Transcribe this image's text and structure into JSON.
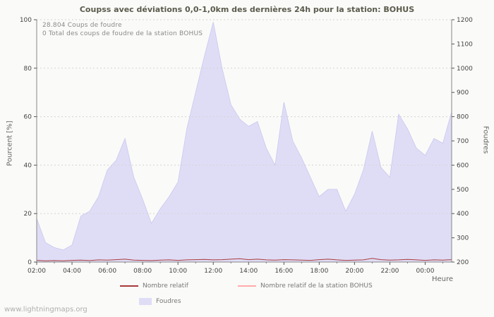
{
  "chart_data": {
    "type": "area",
    "title": "Coupss avec déviations 0,0-1,0km des dernières 24h pour la station: BOHUS",
    "xlabel": "Heure",
    "ylabel_left": "Pourcent  [%]",
    "ylabel_right": "Foudres",
    "annotations": [
      "28.804  Coups de foudre",
      "0 Total des coups de foudre de la station BOHUS"
    ],
    "watermark": "www.lightningmaps.org",
    "x_start": "02:00",
    "x_interval_minutes": 30,
    "x_tick_labels": [
      "02:00",
      "04:00",
      "06:00",
      "08:00",
      "10:00",
      "12:00",
      "14:00",
      "16:00",
      "18:00",
      "20:00",
      "22:00",
      "00:00"
    ],
    "y_left_ticks": [
      0,
      20,
      40,
      60,
      80,
      100
    ],
    "y_right_ticks": [
      200,
      300,
      400,
      500,
      600,
      700,
      800,
      900,
      1000,
      1100,
      1200
    ],
    "ylim_left": [
      0,
      100
    ],
    "ylim_right": [
      200,
      1200
    ],
    "grid": true,
    "legend_position": "bottom",
    "series": [
      {
        "name": "Foudres",
        "type": "area",
        "axis": "right",
        "color": "#dfddf6",
        "edge_color": "#c9c7ef",
        "values": [
          380,
          280,
          260,
          250,
          270,
          390,
          410,
          470,
          580,
          620,
          710,
          550,
          460,
          360,
          420,
          470,
          530,
          750,
          900,
          1050,
          1190,
          1000,
          850,
          790,
          760,
          780,
          670,
          600,
          860,
          700,
          630,
          550,
          470,
          500,
          500,
          410,
          480,
          580,
          740,
          590,
          550,
          810,
          750,
          670,
          640,
          710,
          690,
          820
        ]
      },
      {
        "name": "Nombre relatif",
        "type": "line",
        "axis": "left",
        "color": "#a83a3a",
        "values": [
          0.7,
          0.5,
          0.6,
          0.5,
          0.7,
          0.8,
          0.6,
          0.9,
          0.8,
          1.0,
          1.2,
          0.8,
          0.7,
          0.6,
          0.8,
          0.9,
          0.7,
          0.9,
          1.0,
          1.1,
          0.9,
          1.0,
          1.2,
          1.4,
          1.0,
          1.2,
          0.9,
          0.8,
          1.0,
          0.9,
          0.8,
          0.7,
          1.0,
          1.2,
          0.9,
          0.7,
          0.8,
          0.9,
          1.5,
          1.0,
          0.8,
          0.9,
          1.1,
          0.9,
          0.7,
          0.9,
          0.8,
          1.0
        ]
      },
      {
        "name": "Nombre relatif de la station BOHUS",
        "type": "line",
        "axis": "left",
        "color": "#ffaaaa",
        "values": [
          0,
          0,
          0,
          0,
          0,
          0,
          0,
          0,
          0,
          0,
          0,
          0,
          0,
          0,
          0,
          0,
          0,
          0,
          0,
          0,
          0,
          0,
          0,
          0,
          0,
          0,
          0,
          0,
          0,
          0,
          0,
          0,
          0,
          0,
          0,
          0,
          0,
          0,
          0,
          0,
          0,
          0,
          0,
          0,
          0,
          0,
          0,
          0
        ]
      }
    ]
  }
}
